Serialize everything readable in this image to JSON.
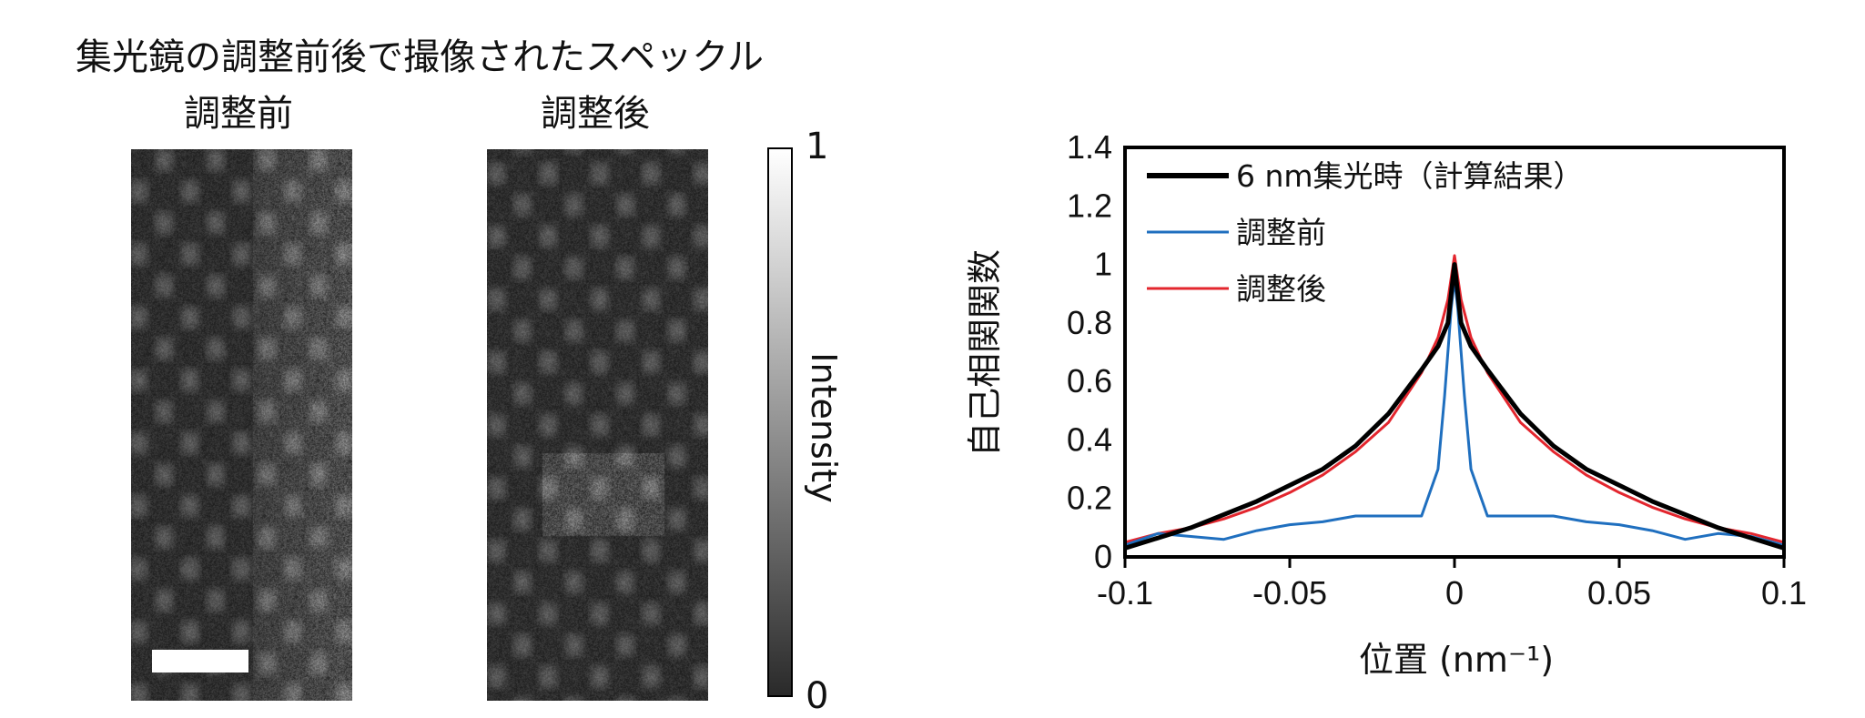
{
  "figure": {
    "title": "集光鏡の調整前後で撮像されたスペックル",
    "panels": [
      {
        "label": "調整前"
      },
      {
        "label": "調整後"
      }
    ],
    "colorbar": {
      "label": "Intensity",
      "max_label": "1",
      "min_label": "0"
    }
  },
  "chart_data": {
    "type": "line",
    "xlabel": "位置 (nm⁻¹)",
    "ylabel": "自己相関関数",
    "xlim": [
      -0.1,
      0.1
    ],
    "ylim": [
      0,
      1.4
    ],
    "xticks": [
      "-0.1",
      "-0.05",
      "0",
      "0.05",
      "0.1"
    ],
    "yticks": [
      "0",
      "0.2",
      "0.4",
      "0.6",
      "0.8",
      "1",
      "1.2",
      "1.4"
    ],
    "legend_position": "top-left",
    "series": [
      {
        "name": "6 nm集光時（計算結果）",
        "color": "#000000",
        "x": [
          -0.1,
          -0.08,
          -0.06,
          -0.04,
          -0.03,
          -0.02,
          -0.01,
          -0.005,
          -0.002,
          0,
          0.002,
          0.005,
          0.01,
          0.02,
          0.03,
          0.04,
          0.06,
          0.08,
          0.1
        ],
        "y": [
          0.03,
          0.1,
          0.19,
          0.3,
          0.38,
          0.49,
          0.64,
          0.72,
          0.8,
          1.0,
          0.8,
          0.72,
          0.64,
          0.49,
          0.38,
          0.3,
          0.19,
          0.1,
          0.03
        ]
      },
      {
        "name": "調整前",
        "color": "#1f6fbf",
        "x": [
          -0.1,
          -0.09,
          -0.08,
          -0.07,
          -0.06,
          -0.05,
          -0.04,
          -0.03,
          -0.02,
          -0.01,
          -0.005,
          -0.003,
          -0.001,
          0,
          0.001,
          0.003,
          0.005,
          0.01,
          0.02,
          0.03,
          0.04,
          0.05,
          0.06,
          0.07,
          0.08,
          0.09,
          0.1
        ],
        "y": [
          0.04,
          0.08,
          0.07,
          0.06,
          0.09,
          0.11,
          0.12,
          0.14,
          0.14,
          0.14,
          0.3,
          0.55,
          0.85,
          0.95,
          0.85,
          0.55,
          0.3,
          0.14,
          0.14,
          0.14,
          0.12,
          0.11,
          0.09,
          0.06,
          0.08,
          0.07,
          0.04
        ]
      },
      {
        "name": "調整後",
        "color": "#e3262e",
        "x": [
          -0.1,
          -0.09,
          -0.08,
          -0.07,
          -0.06,
          -0.05,
          -0.04,
          -0.03,
          -0.02,
          -0.01,
          -0.005,
          -0.002,
          0,
          0.002,
          0.005,
          0.01,
          0.02,
          0.03,
          0.04,
          0.05,
          0.06,
          0.07,
          0.08,
          0.09,
          0.1
        ],
        "y": [
          0.05,
          0.08,
          0.1,
          0.13,
          0.17,
          0.22,
          0.28,
          0.36,
          0.46,
          0.63,
          0.75,
          0.88,
          1.03,
          0.88,
          0.75,
          0.63,
          0.46,
          0.36,
          0.28,
          0.22,
          0.17,
          0.13,
          0.1,
          0.08,
          0.05
        ]
      }
    ]
  }
}
